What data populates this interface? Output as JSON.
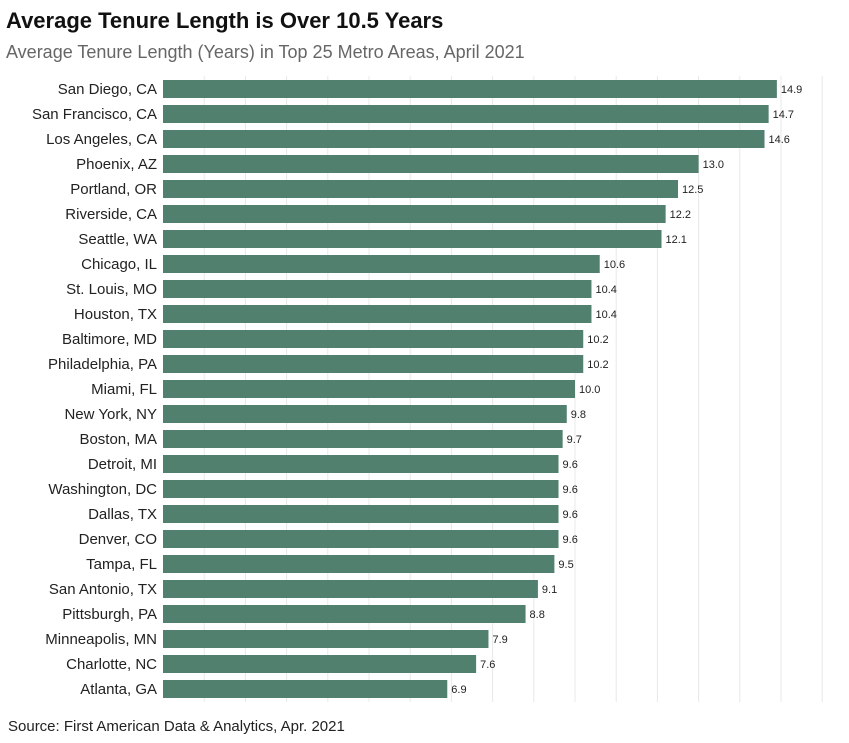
{
  "colors": {
    "bar": "#52806f",
    "grid": "#e8e8e8",
    "text": "#222222"
  },
  "source": "Source: First American Data & Analytics, Apr. 2021",
  "chart_data": {
    "type": "bar",
    "orientation": "horizontal",
    "title": "Average Tenure Length is Over 10.5 Years",
    "subtitle": "Average Tenure Length (Years) in Top 25 Metro Areas, April 2021",
    "xlabel": "",
    "ylabel": "",
    "xlim": [
      0,
      16
    ],
    "grid": true,
    "categories": [
      "San Diego, CA",
      "San Francisco, CA",
      "Los Angeles, CA",
      "Phoenix, AZ",
      "Portland, OR",
      "Riverside, CA",
      "Seattle, WA",
      "Chicago, IL",
      "St. Louis, MO",
      "Houston, TX",
      "Baltimore, MD",
      "Philadelphia, PA",
      "Miami, FL",
      "New York, NY",
      "Boston, MA",
      "Detroit, MI",
      "Washington, DC",
      "Dallas, TX",
      "Denver, CO",
      "Tampa, FL",
      "San Antonio, TX",
      "Pittsburgh, PA",
      "Minneapolis, MN",
      "Charlotte, NC",
      "Atlanta, GA"
    ],
    "values": [
      14.9,
      14.7,
      14.6,
      13.0,
      12.5,
      12.2,
      12.1,
      10.6,
      10.4,
      10.4,
      10.2,
      10.2,
      10.0,
      9.8,
      9.7,
      9.6,
      9.6,
      9.6,
      9.6,
      9.5,
      9.1,
      8.8,
      7.9,
      7.6,
      6.9
    ],
    "value_labels": [
      "14.9",
      "14.7",
      "14.6",
      "13.0",
      "12.5",
      "12.2",
      "12.1",
      "10.6",
      "10.4",
      "10.4",
      "10.2",
      "10.2",
      "10.0",
      "9.8",
      "9.7",
      "9.6",
      "9.6",
      "9.6",
      "9.6",
      "9.5",
      "9.1",
      "8.8",
      "7.9",
      "7.6",
      "6.9"
    ]
  }
}
